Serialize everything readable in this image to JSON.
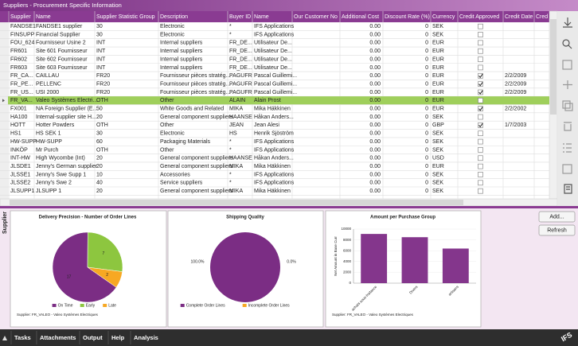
{
  "window_title": "Suppliers - Procurement Specific Information",
  "table": {
    "columns": [
      "Supplier",
      "Name",
      "Supplier Statistic Group",
      "Description",
      "Buyer ID",
      "Name",
      "Our Customer No",
      "Additional Cost",
      "Discount Rate (%)",
      "Currency",
      "Credit Approved",
      "Credit Date",
      "Cred"
    ],
    "selected_row": 9,
    "rows": [
      [
        "FANDSE1",
        "FANDSE1 supplier",
        "30",
        "Electronic",
        "*",
        "IFS Applications",
        null,
        "0.00",
        "0",
        "SEK",
        false,
        null
      ],
      [
        "FINSUPP",
        "Financial Supplier",
        "30",
        "Electronic",
        "*",
        "IFS Applications",
        null,
        "0.00",
        "0",
        "SEK",
        false,
        null
      ],
      [
        "FOU_624",
        "Fournisseur Usine 2",
        "INT",
        "Internal suppliers",
        "FR_DE...",
        "Utilisateur De...",
        null,
        "0.00",
        "0",
        "EUR",
        false,
        null
      ],
      [
        "FR601",
        "Site 601 Fournisseur",
        "INT",
        "Internal suppliers",
        "FR_DE...",
        "Utilisateur De...",
        null,
        "0.00",
        "0",
        "EUR",
        false,
        null
      ],
      [
        "FR602",
        "Site 602 Fournisseur",
        "INT",
        "Internal suppliers",
        "FR_DE...",
        "Utilisateur De...",
        null,
        "0.00",
        "0",
        "EUR",
        false,
        null
      ],
      [
        "FR603",
        "Site 603 Fournisseur",
        "INT",
        "Internal suppliers",
        "FR_DE...",
        "Utilisateur De...",
        null,
        "0.00",
        "0",
        "EUR",
        false,
        null
      ],
      [
        "FR_CA...",
        "CAILLAU",
        "FR20",
        "Fournisseur pièces stratég...",
        "PAGUFR",
        "Pascal Guillemi...",
        null,
        "0.00",
        "0",
        "EUR",
        true,
        "2/2/2009"
      ],
      [
        "FR_PE...",
        "PELLENC",
        "FR20",
        "Fournisseur pièces stratég...",
        "PAGUFR",
        "Pascal Guillemi...",
        null,
        "0.00",
        "0",
        "EUR",
        true,
        "2/2/2009"
      ],
      [
        "FR_US...",
        "USI 2000",
        "FR20",
        "Fournisseur pièces stratég...",
        "PAGUFR",
        "Pascal Guillemi...",
        null,
        "0.00",
        "0",
        "EUR",
        true,
        "2/2/2009"
      ],
      [
        "FR_VA...",
        "Valeo Systèmes Electri...",
        "OTH",
        "Other",
        "ALAIN",
        "Alain Prost",
        null,
        "0.00",
        "0",
        "EUR",
        false,
        null
      ],
      [
        "FX001",
        "NA Foreign Supplier (E...",
        "50",
        "White Goods and Related",
        "MIKA",
        "Mika Häkkinen",
        null,
        "0.00",
        "0",
        "EUR",
        true,
        "2/2/2002"
      ],
      [
        "HA100",
        "Internal-supplier site H...",
        "20",
        "General component suppliers",
        "HAANSE",
        "Håkan Anders...",
        null,
        "0.00",
        "0",
        "SEK",
        false,
        null
      ],
      [
        "HOTT",
        "Hotter Powders",
        "OTH",
        "Other",
        "JEAN",
        "Jean Alesi",
        null,
        "0.00",
        "0",
        "GBP",
        true,
        "1/7/2003"
      ],
      [
        "HS1",
        "HS SEK 1",
        "30",
        "Electronic",
        "HS",
        "Henrik Sjöström",
        null,
        "0.00",
        "0",
        "SEK",
        false,
        null
      ],
      [
        "HW-SUPP",
        "HW-SUPP",
        "60",
        "Packaging Materials",
        "*",
        "IFS Applications",
        null,
        "0.00",
        "0",
        "SEK",
        false,
        null
      ],
      [
        "INKÖP",
        "Mr Purch",
        "OTH",
        "Other",
        "*",
        "IFS Applications",
        null,
        "0.00",
        "0",
        "SEK",
        false,
        null
      ],
      [
        "INT-HW",
        "High Wycombe (Int)",
        "20",
        "General component suppliers",
        "HAANSE",
        "Håkan Anders...",
        null,
        "0.00",
        "0",
        "USD",
        false,
        null
      ],
      [
        "JLSDE1",
        "Jenny's German supplier",
        "20",
        "General component suppliers",
        "MIKA",
        "Mika Häkkinen",
        null,
        "0.00",
        "0",
        "EUR",
        false,
        null
      ],
      [
        "JLSSE1",
        "Jenny's Swe Supp 1",
        "10",
        "Accessories",
        "*",
        "IFS Applications",
        null,
        "0.00",
        "0",
        "SEK",
        false,
        null
      ],
      [
        "JLSSE2",
        "Jenny's Swe 2",
        "40",
        "Service suppliers",
        "*",
        "IFS Applications",
        null,
        "0.00",
        "0",
        "SEK",
        false,
        null
      ],
      [
        "JLSUPP1",
        "JLSUPP 1",
        "20",
        "General component suppliers",
        "MIKA",
        "Mika Häkkinen",
        null,
        "0.00",
        "0",
        "SEK",
        false,
        null
      ]
    ]
  },
  "side_label": "Supplier",
  "buttons": [
    "Add...",
    "Refresh"
  ],
  "tabs": [
    "Tasks",
    "Attachments",
    "Output",
    "Help",
    "Analysis"
  ],
  "logo": "IFS",
  "chart_data": [
    {
      "type": "pie",
      "title": "Delivery Precision - Number of Order Lines",
      "categories": [
        "On Time",
        "Early",
        "Late"
      ],
      "values": [
        17,
        7,
        2
      ],
      "colors": [
        "#7b2d84",
        "#8dc63f",
        "#f7a823"
      ],
      "footer": "Supplier: FR_VALEO - Valeo Systèmes Electriques"
    },
    {
      "type": "pie",
      "title": "Shipping Quality",
      "categories": [
        "Complete Order Lines",
        "Incomplete Order Lines"
      ],
      "values": [
        100.0,
        0.0
      ],
      "value_labels": [
        "100.0%",
        "0.0%"
      ],
      "colors": [
        "#7b2d84",
        "#f7a823"
      ]
    },
    {
      "type": "bar",
      "title": "Amount per Purchase Group",
      "ylabel": "Net Amount in Base Curr",
      "categories": [
        "achats sous-traitance",
        "Divers",
        "artisans"
      ],
      "values": [
        9100,
        8500,
        6400
      ],
      "color": "#84368c",
      "ylim": [
        0,
        10000
      ],
      "yticks": [
        0,
        2000,
        4000,
        6000,
        8000,
        10000
      ],
      "footer": "Supplier: FR_VALEO - Valeo Systèmes Electriques"
    }
  ]
}
